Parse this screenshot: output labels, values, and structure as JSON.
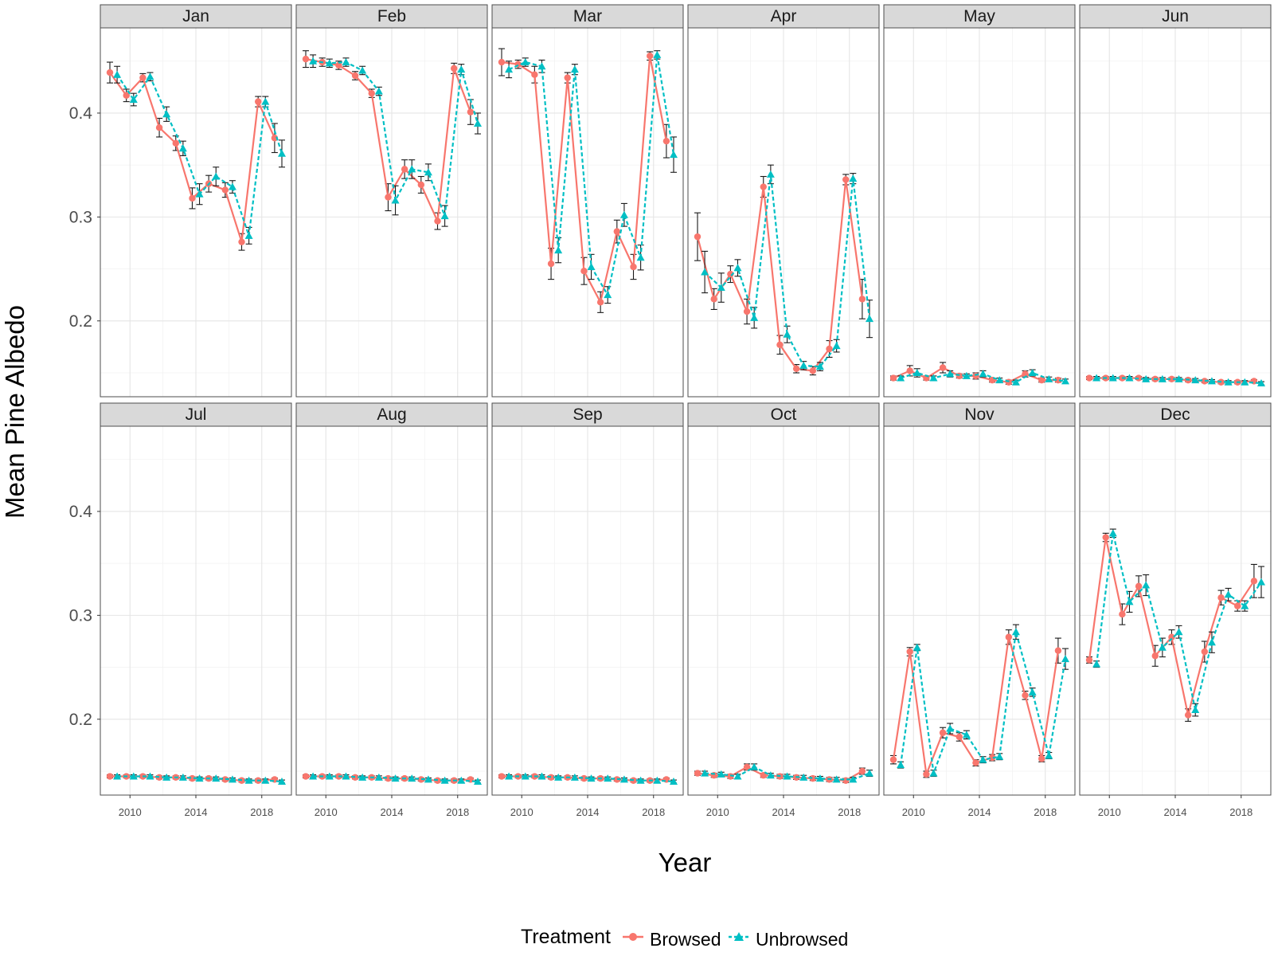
{
  "chart_data": {
    "type": "line",
    "facet_by": "month",
    "xlabel": "Year",
    "ylabel": "Mean Pine Albedo",
    "xlim": [
      2008.2,
      2019.8
    ],
    "ylim": [
      0.127,
      0.482
    ],
    "x_ticks": [
      2010,
      2014,
      2018
    ],
    "x_tick_labels": [
      "2010",
      "2014",
      "2018"
    ],
    "y_ticks": [
      0.2,
      0.3,
      0.4
    ],
    "y_tick_labels": [
      "0.2",
      "0.3",
      "0.4"
    ],
    "grid": true,
    "legend": {
      "title": "Treatment",
      "position": "bottom",
      "entries": [
        "Browsed",
        "Unbrowsed"
      ]
    },
    "colors": {
      "Browsed": "#f8766d",
      "Unbrowsed": "#00bfc4"
    },
    "x": [
      2009,
      2010,
      2011,
      2012,
      2013,
      2014,
      2015,
      2016,
      2017,
      2018,
      2019
    ],
    "panels": [
      {
        "month": "Jan",
        "series": [
          {
            "name": "Browsed",
            "values": [
              0.439,
              0.417,
              0.434,
              0.386,
              0.371,
              0.318,
              0.332,
              0.326,
              0.276,
              0.411,
              0.376
            ],
            "errors": [
              0.01,
              0.006,
              0.004,
              0.009,
              0.007,
              0.01,
              0.008,
              0.007,
              0.008,
              0.005,
              0.014
            ]
          },
          {
            "name": "Unbrowsed",
            "values": [
              0.437,
              0.413,
              0.435,
              0.399,
              0.366,
              0.322,
              0.339,
              0.329,
              0.282,
              0.411,
              0.361
            ],
            "errors": [
              0.008,
              0.006,
              0.004,
              0.007,
              0.007,
              0.01,
              0.009,
              0.006,
              0.008,
              0.005,
              0.013
            ]
          }
        ]
      },
      {
        "month": "Feb",
        "series": [
          {
            "name": "Browsed",
            "values": [
              0.452,
              0.449,
              0.446,
              0.436,
              0.419,
              0.319,
              0.346,
              0.331,
              0.296,
              0.443,
              0.401
            ],
            "errors": [
              0.008,
              0.004,
              0.004,
              0.004,
              0.004,
              0.013,
              0.009,
              0.008,
              0.008,
              0.005,
              0.012
            ]
          },
          {
            "name": "Unbrowsed",
            "values": [
              0.45,
              0.448,
              0.449,
              0.441,
              0.421,
              0.316,
              0.346,
              0.343,
              0.301,
              0.442,
              0.39
            ],
            "errors": [
              0.006,
              0.004,
              0.004,
              0.004,
              0.004,
              0.014,
              0.009,
              0.008,
              0.01,
              0.005,
              0.01
            ]
          }
        ]
      },
      {
        "month": "Mar",
        "series": [
          {
            "name": "Browsed",
            "values": [
              0.449,
              0.447,
              0.437,
              0.255,
              0.434,
              0.248,
              0.218,
              0.286,
              0.252,
              0.455,
              0.373
            ],
            "errors": [
              0.013,
              0.004,
              0.008,
              0.015,
              0.005,
              0.013,
              0.01,
              0.011,
              0.012,
              0.004,
              0.016
            ]
          },
          {
            "name": "Unbrowsed",
            "values": [
              0.442,
              0.449,
              0.445,
              0.268,
              0.442,
              0.252,
              0.225,
              0.302,
              0.261,
              0.456,
              0.36
            ],
            "errors": [
              0.008,
              0.004,
              0.006,
              0.012,
              0.005,
              0.012,
              0.008,
              0.011,
              0.012,
              0.004,
              0.017
            ]
          }
        ]
      },
      {
        "month": "Apr",
        "series": [
          {
            "name": "Browsed",
            "values": [
              0.281,
              0.221,
              0.245,
              0.209,
              0.329,
              0.177,
              0.154,
              0.152,
              0.173,
              0.336,
              0.221
            ],
            "errors": [
              0.023,
              0.01,
              0.008,
              0.012,
              0.01,
              0.009,
              0.004,
              0.004,
              0.008,
              0.005,
              0.019
            ]
          },
          {
            "name": "Unbrowsed",
            "values": [
              0.247,
              0.232,
              0.251,
              0.203,
              0.341,
              0.187,
              0.157,
              0.156,
              0.176,
              0.337,
              0.202
            ],
            "errors": [
              0.02,
              0.014,
              0.008,
              0.01,
              0.009,
              0.008,
              0.004,
              0.004,
              0.006,
              0.005,
              0.018
            ]
          }
        ]
      },
      {
        "month": "May",
        "series": [
          {
            "name": "Browsed",
            "values": [
              0.145,
              0.152,
              0.145,
              0.155,
              0.147,
              0.147,
              0.143,
              0.141,
              0.149,
              0.143,
              0.143
            ],
            "errors": [
              0.002,
              0.005,
              0.002,
              0.005,
              0.002,
              0.003,
              0.002,
              0.002,
              0.003,
              0.002,
              0.002
            ]
          },
          {
            "name": "Unbrowsed",
            "values": [
              0.145,
              0.15,
              0.145,
              0.149,
              0.147,
              0.149,
              0.143,
              0.141,
              0.15,
              0.144,
              0.142
            ],
            "errors": [
              0.002,
              0.004,
              0.002,
              0.003,
              0.002,
              0.003,
              0.002,
              0.002,
              0.003,
              0.002,
              0.002
            ]
          }
        ]
      },
      {
        "month": "Jun",
        "series": [
          {
            "name": "Browsed",
            "values": [
              0.145,
              0.145,
              0.145,
              0.145,
              0.144,
              0.144,
              0.143,
              0.142,
              0.141,
              0.141,
              0.142
            ],
            "errors": [
              0.0015,
              0.0015,
              0.0015,
              0.0015,
              0.0015,
              0.0015,
              0.0015,
              0.0015,
              0.0015,
              0.0015,
              0.0015
            ]
          },
          {
            "name": "Unbrowsed",
            "values": [
              0.145,
              0.145,
              0.145,
              0.144,
              0.144,
              0.144,
              0.143,
              0.142,
              0.141,
              0.141,
              0.14
            ],
            "errors": [
              0.0015,
              0.0015,
              0.0015,
              0.0015,
              0.0015,
              0.0015,
              0.0015,
              0.0015,
              0.0015,
              0.0015,
              0.0015
            ]
          }
        ]
      },
      {
        "month": "Jul",
        "series": [
          {
            "name": "Browsed",
            "values": [
              0.145,
              0.145,
              0.145,
              0.144,
              0.144,
              0.143,
              0.143,
              0.142,
              0.141,
              0.141,
              0.142
            ],
            "errors": [
              0.0015,
              0.0015,
              0.0015,
              0.0015,
              0.0015,
              0.0015,
              0.0015,
              0.0015,
              0.0015,
              0.0015,
              0.0015
            ]
          },
          {
            "name": "Unbrowsed",
            "values": [
              0.145,
              0.145,
              0.145,
              0.144,
              0.144,
              0.143,
              0.143,
              0.142,
              0.141,
              0.141,
              0.14
            ],
            "errors": [
              0.0015,
              0.0015,
              0.0015,
              0.0015,
              0.0015,
              0.0015,
              0.0015,
              0.0015,
              0.0015,
              0.0015,
              0.0015
            ]
          }
        ]
      },
      {
        "month": "Aug",
        "series": [
          {
            "name": "Browsed",
            "values": [
              0.145,
              0.145,
              0.145,
              0.144,
              0.144,
              0.143,
              0.143,
              0.142,
              0.141,
              0.141,
              0.142
            ],
            "errors": [
              0.0015,
              0.0015,
              0.0015,
              0.0015,
              0.0015,
              0.0015,
              0.0015,
              0.0015,
              0.0015,
              0.0015,
              0.0015
            ]
          },
          {
            "name": "Unbrowsed",
            "values": [
              0.145,
              0.145,
              0.145,
              0.144,
              0.144,
              0.143,
              0.143,
              0.142,
              0.141,
              0.141,
              0.14
            ],
            "errors": [
              0.0015,
              0.0015,
              0.0015,
              0.0015,
              0.0015,
              0.0015,
              0.0015,
              0.0015,
              0.0015,
              0.0015,
              0.0015
            ]
          }
        ]
      },
      {
        "month": "Sep",
        "series": [
          {
            "name": "Browsed",
            "values": [
              0.145,
              0.145,
              0.145,
              0.144,
              0.144,
              0.143,
              0.143,
              0.142,
              0.141,
              0.141,
              0.142
            ],
            "errors": [
              0.0015,
              0.0015,
              0.0015,
              0.0015,
              0.0015,
              0.0015,
              0.0015,
              0.0015,
              0.0015,
              0.0015,
              0.0015
            ]
          },
          {
            "name": "Unbrowsed",
            "values": [
              0.145,
              0.145,
              0.145,
              0.144,
              0.144,
              0.143,
              0.143,
              0.142,
              0.141,
              0.141,
              0.14
            ],
            "errors": [
              0.0015,
              0.0015,
              0.0015,
              0.0015,
              0.0015,
              0.0015,
              0.0015,
              0.0015,
              0.0015,
              0.0015,
              0.0015
            ]
          }
        ]
      },
      {
        "month": "Oct",
        "series": [
          {
            "name": "Browsed",
            "values": [
              0.148,
              0.146,
              0.145,
              0.154,
              0.146,
              0.145,
              0.144,
              0.143,
              0.142,
              0.141,
              0.15
            ],
            "errors": [
              0.002,
              0.002,
              0.002,
              0.003,
              0.002,
              0.002,
              0.002,
              0.002,
              0.002,
              0.002,
              0.003
            ]
          },
          {
            "name": "Unbrowsed",
            "values": [
              0.148,
              0.147,
              0.145,
              0.154,
              0.146,
              0.145,
              0.144,
              0.143,
              0.142,
              0.142,
              0.148
            ],
            "errors": [
              0.002,
              0.002,
              0.002,
              0.003,
              0.002,
              0.002,
              0.002,
              0.002,
              0.002,
              0.002,
              0.003
            ]
          }
        ]
      },
      {
        "month": "Nov",
        "series": [
          {
            "name": "Browsed",
            "values": [
              0.161,
              0.265,
              0.147,
              0.187,
              0.183,
              0.158,
              0.163,
              0.279,
              0.223,
              0.162,
              0.266
            ],
            "errors": [
              0.004,
              0.004,
              0.003,
              0.005,
              0.004,
              0.003,
              0.003,
              0.007,
              0.004,
              0.003,
              0.012
            ]
          },
          {
            "name": "Unbrowsed",
            "values": [
              0.156,
              0.269,
              0.148,
              0.191,
              0.185,
              0.161,
              0.164,
              0.284,
              0.226,
              0.165,
              0.258
            ],
            "errors": [
              0.003,
              0.003,
              0.003,
              0.005,
              0.004,
              0.003,
              0.003,
              0.007,
              0.004,
              0.003,
              0.01
            ]
          }
        ]
      },
      {
        "month": "Dec",
        "series": [
          {
            "name": "Browsed",
            "values": [
              0.257,
              0.375,
              0.301,
              0.328,
              0.261,
              0.279,
              0.204,
              0.265,
              0.317,
              0.309,
              0.333
            ],
            "errors": [
              0.003,
              0.004,
              0.01,
              0.01,
              0.01,
              0.007,
              0.006,
              0.01,
              0.007,
              0.005,
              0.016
            ]
          },
          {
            "name": "Unbrowsed",
            "values": [
              0.253,
              0.379,
              0.313,
              0.329,
              0.269,
              0.284,
              0.209,
              0.274,
              0.32,
              0.309,
              0.332
            ],
            "errors": [
              0.003,
              0.004,
              0.01,
              0.01,
              0.009,
              0.006,
              0.006,
              0.01,
              0.006,
              0.005,
              0.015
            ]
          }
        ]
      }
    ]
  }
}
